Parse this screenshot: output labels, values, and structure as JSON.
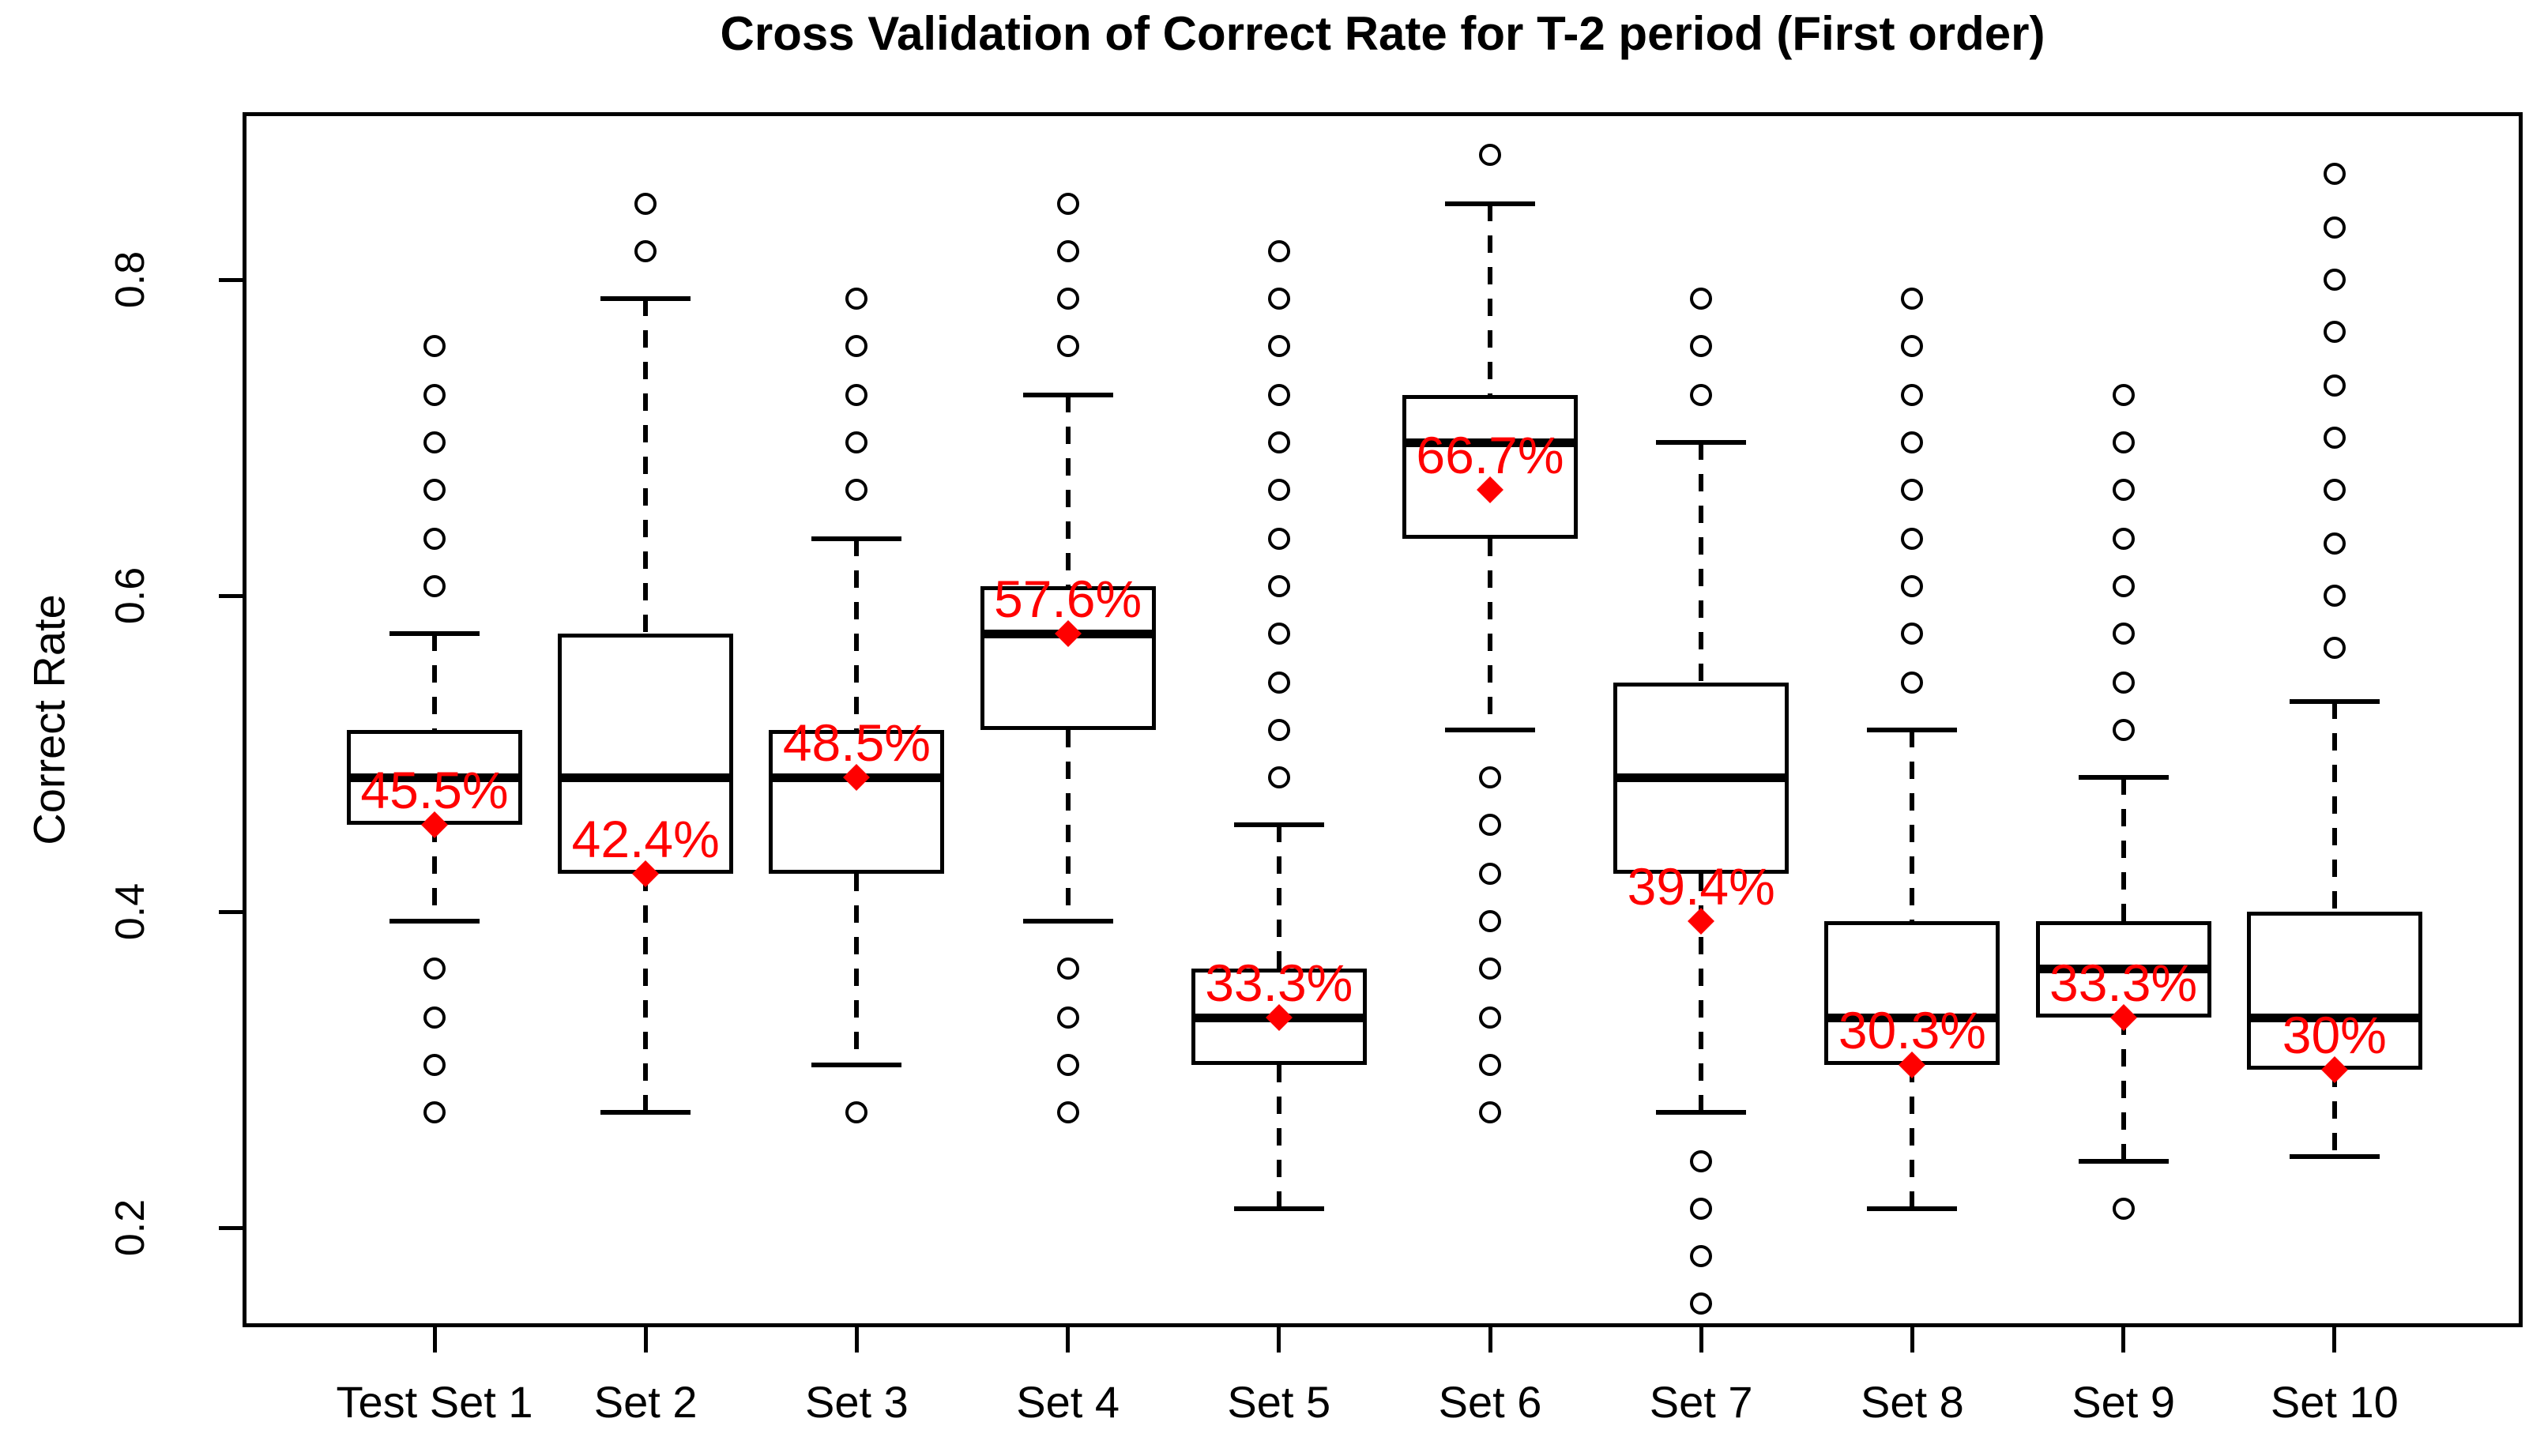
{
  "title": "Cross Validation of Correct Rate for T-2 period (First order)",
  "colors": {
    "foreground": "#000000",
    "background": "#ffffff",
    "mean_marker_red": "#ff0000"
  },
  "chart_data": {
    "type": "boxplot",
    "title": "Cross Validation of Correct Rate for T-2 period (First order)",
    "xlabel": "",
    "ylabel": "Correct Rate",
    "ylim": [
      0.14,
      0.91
    ],
    "grid": "off",
    "yticks": [
      0.2,
      0.4,
      0.6,
      0.8
    ],
    "ytick_labels": [
      "0.2",
      "0.4",
      "0.6",
      "0.8"
    ],
    "categories": [
      "Test Set 1",
      "Set 2",
      "Set 3",
      "Set 4",
      "Set 5",
      "Set 6",
      "Set 7",
      "Set 8",
      "Set 9",
      "Set 10"
    ],
    "sets": [
      {
        "label": "Test Set 1",
        "mean_label": "45.5%",
        "mean": 0.455,
        "q1": 0.455,
        "median": 0.485,
        "q3": 0.515,
        "whisker_low": 0.394,
        "whisker_high": 0.576,
        "outliers_high": [
          0.758,
          0.727,
          0.697,
          0.667,
          0.636,
          0.606
        ],
        "outliers_low": [
          0.364,
          0.333,
          0.303,
          0.273
        ]
      },
      {
        "label": "Set 2",
        "mean_label": "42.4%",
        "mean": 0.424,
        "q1": 0.424,
        "median": 0.485,
        "q3": 0.576,
        "whisker_low": 0.273,
        "whisker_high": 0.788,
        "outliers_high": [
          0.848,
          0.818
        ],
        "outliers_low": []
      },
      {
        "label": "Set 3",
        "mean_label": "48.5%",
        "mean": 0.485,
        "q1": 0.424,
        "median": 0.485,
        "q3": 0.515,
        "whisker_low": 0.303,
        "whisker_high": 0.636,
        "outliers_high": [
          0.788,
          0.758,
          0.727,
          0.697,
          0.667
        ],
        "outliers_low": [
          0.273
        ]
      },
      {
        "label": "Set 4",
        "mean_label": "57.6%",
        "mean": 0.576,
        "q1": 0.515,
        "median": 0.576,
        "q3": 0.606,
        "whisker_low": 0.394,
        "whisker_high": 0.727,
        "outliers_high": [
          0.848,
          0.818,
          0.788,
          0.758
        ],
        "outliers_low": [
          0.364,
          0.333,
          0.303,
          0.273
        ]
      },
      {
        "label": "Set 5",
        "mean_label": "33.3%",
        "mean": 0.333,
        "q1": 0.303,
        "median": 0.333,
        "q3": 0.364,
        "whisker_low": 0.212,
        "whisker_high": 0.455,
        "outliers_high": [
          0.818,
          0.788,
          0.758,
          0.727,
          0.697,
          0.667,
          0.636,
          0.606,
          0.576,
          0.545,
          0.515,
          0.485
        ],
        "outliers_low": []
      },
      {
        "label": "Set 6",
        "mean_label": "66.7%",
        "mean": 0.667,
        "q1": 0.636,
        "median": 0.697,
        "q3": 0.727,
        "whisker_low": 0.515,
        "whisker_high": 0.848,
        "outliers_high": [
          0.879
        ],
        "outliers_low": [
          0.485,
          0.455,
          0.424,
          0.394,
          0.364,
          0.333,
          0.303,
          0.273
        ]
      },
      {
        "label": "Set 7",
        "mean_label": "39.4%",
        "mean": 0.394,
        "q1": 0.424,
        "median": 0.485,
        "q3": 0.545,
        "whisker_low": 0.273,
        "whisker_high": 0.697,
        "outliers_high": [
          0.788,
          0.758,
          0.727
        ],
        "outliers_low": [
          0.242,
          0.212,
          0.182,
          0.152
        ]
      },
      {
        "label": "Set 8",
        "mean_label": "30.3%",
        "mean": 0.303,
        "q1": 0.303,
        "median": 0.333,
        "q3": 0.394,
        "whisker_low": 0.212,
        "whisker_high": 0.515,
        "outliers_high": [
          0.788,
          0.758,
          0.727,
          0.697,
          0.667,
          0.636,
          0.606,
          0.576,
          0.545
        ],
        "outliers_low": []
      },
      {
        "label": "Set 9",
        "mean_label": "33.3%",
        "mean": 0.333,
        "q1": 0.333,
        "median": 0.364,
        "q3": 0.394,
        "whisker_low": 0.242,
        "whisker_high": 0.485,
        "outliers_high": [
          0.727,
          0.697,
          0.667,
          0.636,
          0.606,
          0.576,
          0.545,
          0.515
        ],
        "outliers_low": [
          0.212
        ]
      },
      {
        "label": "Set 10",
        "mean_label": "30%",
        "mean": 0.3,
        "q1": 0.3,
        "median": 0.333,
        "q3": 0.4,
        "whisker_low": 0.245,
        "whisker_high": 0.533,
        "outliers_high": [
          0.867,
          0.833,
          0.8,
          0.767,
          0.733,
          0.7,
          0.667,
          0.633,
          0.6,
          0.567
        ],
        "outliers_low": []
      }
    ]
  }
}
